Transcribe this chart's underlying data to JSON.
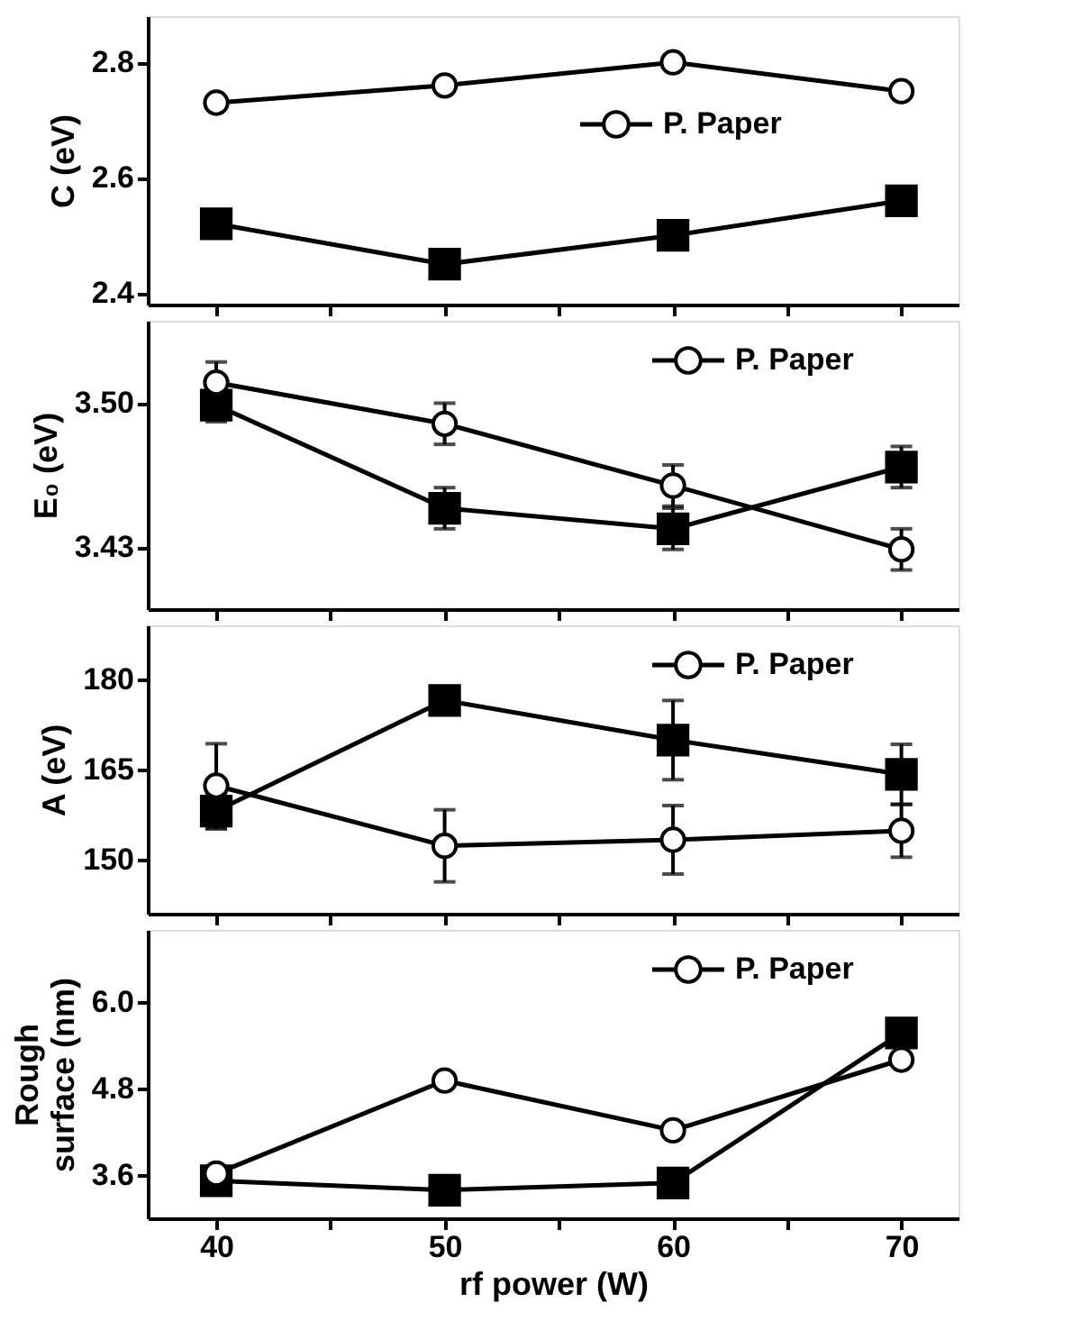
{
  "chart_data": [
    {
      "type": "line",
      "ylabel": "C (eV)",
      "x": [
        40,
        50,
        60,
        70
      ],
      "xlim": [
        37,
        72.5
      ],
      "xticks": [
        40,
        {
          "value": 45,
          "label": null
        },
        50,
        {
          "value": 55,
          "label": null
        },
        60,
        {
          "value": 65,
          "label": null
        },
        70
      ],
      "ylim": [
        2.38,
        2.88
      ],
      "yticks": [
        2.4,
        2.6,
        2.8
      ],
      "tick_labels": "y",
      "legend": "right",
      "grid": false,
      "series": [
        {
          "color": "#000000",
          "marker": "square",
          "values": [
            2.52,
            2.45,
            2.5,
            2.56
          ]
        },
        {
          "name": "P. Paper",
          "color": "#000000",
          "marker": "circle",
          "values": [
            2.73,
            2.76,
            2.8,
            2.75
          ]
        }
      ]
    },
    {
      "type": "line",
      "ylabel": "E₀ (eV)",
      "x": [
        40,
        50,
        60,
        70
      ],
      "xlim": [
        37,
        72.5
      ],
      "xticks": [
        40,
        {
          "value": 45,
          "label": null
        },
        50,
        {
          "value": 55,
          "label": null
        },
        60,
        {
          "value": 65,
          "label": null
        },
        70
      ],
      "ylim": [
        3.4,
        3.54
      ],
      "yticks": [
        3.43,
        {
          "value": 3.5,
          "label": "3.50"
        }
      ],
      "tick_labels": "y",
      "legend": "top right",
      "grid": false,
      "series": [
        {
          "color": "#000000",
          "marker": "square",
          "values": [
            3.499,
            3.449,
            3.439,
            3.469
          ],
          "errors": [
            0.008,
            0.01,
            0.01,
            0.01
          ]
        },
        {
          "name": "P. Paper",
          "color": "#000000",
          "marker": "circle",
          "values": [
            3.51,
            3.49,
            3.46,
            3.429
          ],
          "errors": [
            0.01,
            0.01,
            0.01,
            0.01
          ]
        }
      ]
    },
    {
      "type": "line",
      "ylabel": "A (eV)",
      "x": [
        40,
        50,
        60,
        70
      ],
      "xlim": [
        37,
        72.5
      ],
      "xticks": [
        40,
        {
          "value": 45,
          "label": null
        },
        50,
        {
          "value": 55,
          "label": null
        },
        60,
        {
          "value": 65,
          "label": null
        },
        70
      ],
      "ylim": [
        141,
        189
      ],
      "yticks": [
        150,
        165,
        180
      ],
      "tick_labels": "y",
      "legend": "top right",
      "grid": false,
      "series": [
        {
          "color": "#000000",
          "marker": "square",
          "values": [
            158.1,
            176.5,
            169.9,
            164.2
          ],
          "errors": [
            3,
            1,
            6.6,
            5
          ]
        },
        {
          "name": "P. Paper",
          "color": "#000000",
          "marker": "circle",
          "values": [
            162.3,
            152.3,
            153.3,
            154.8
          ],
          "errors": [
            7,
            6,
            5.7,
            4.4
          ]
        }
      ]
    },
    {
      "type": "line",
      "ylabel": "Rough surface (nm)",
      "xlabel": "rf power (W)",
      "x": [
        40,
        50,
        60,
        70
      ],
      "xlim": [
        37,
        72.5
      ],
      "xticks": [
        40,
        {
          "value": 45,
          "label": null
        },
        50,
        {
          "value": 55,
          "label": null
        },
        60,
        {
          "value": 65,
          "label": null
        },
        70
      ],
      "ylim": [
        3.0,
        7.0
      ],
      "yticks": [
        3.6,
        4.8,
        {
          "value": 6,
          "label": "6.0"
        }
      ],
      "legend": "top right",
      "grid": false,
      "series": [
        {
          "color": "#000000",
          "marker": "square",
          "values": [
            3.52,
            3.39,
            3.49,
            5.57
          ]
        },
        {
          "name": "P. Paper",
          "color": "#000000",
          "marker": "circle",
          "values": [
            3.62,
            4.91,
            4.22,
            5.2
          ]
        }
      ]
    }
  ]
}
